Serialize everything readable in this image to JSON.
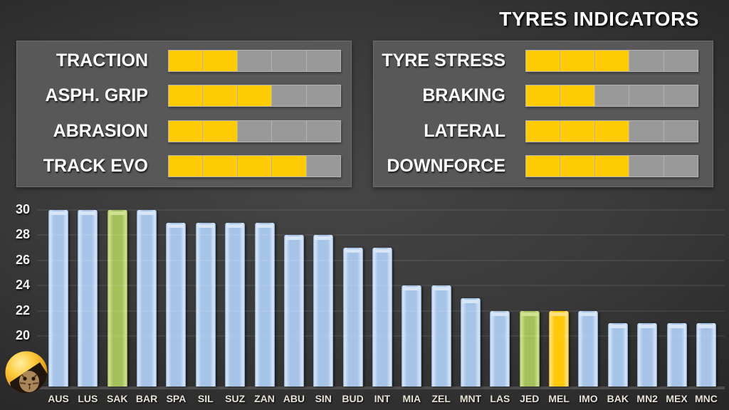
{
  "title": "TYRES INDICATORS",
  "icons": {
    "logo": "cat-helmet-avatar"
  },
  "colors": {
    "indicator_fill": "#FFCB05",
    "indicator_empty": "#999999",
    "panel_bg": "#5A5A5A",
    "bar_blue": "#A6C3E8",
    "bar_green": "#A3C05A",
    "bar_gold": "#FFC808",
    "axis_label_text": "#E7E1D5",
    "title_text": "#FFFFFF"
  },
  "panels": {
    "left": {
      "rows": [
        {
          "label": "TRACTION",
          "value": 2,
          "max": 5
        },
        {
          "label": "ASPH. GRIP",
          "value": 3,
          "max": 5
        },
        {
          "label": "ABRASION",
          "value": 2,
          "max": 5
        },
        {
          "label": "TRACK EVO",
          "value": 4,
          "max": 5
        }
      ]
    },
    "right": {
      "rows": [
        {
          "label": "TYRE STRESS",
          "value": 3,
          "max": 5
        },
        {
          "label": "BRAKING",
          "value": 2,
          "max": 5
        },
        {
          "label": "LATERAL",
          "value": 3,
          "max": 5
        },
        {
          "label": "DOWNFORCE",
          "value": 3,
          "max": 5
        }
      ]
    }
  },
  "chart_data": {
    "type": "bar",
    "categories": [
      "AUS",
      "LUS",
      "SAK",
      "BAR",
      "SPA",
      "SIL",
      "SUZ",
      "ZAN",
      "ABU",
      "SIN",
      "BUD",
      "INT",
      "MIA",
      "ZEL",
      "MNT",
      "LAS",
      "JED",
      "MEL",
      "IMO",
      "BAK",
      "MN2",
      "MEX",
      "MNC"
    ],
    "values": [
      30,
      30,
      30,
      30,
      29,
      29,
      29,
      29,
      28,
      28,
      27,
      27,
      24,
      24,
      23,
      22,
      22,
      22,
      22,
      21,
      21,
      21,
      21
    ],
    "bar_colors": [
      "blue",
      "blue",
      "green",
      "blue",
      "blue",
      "blue",
      "blue",
      "blue",
      "blue",
      "blue",
      "blue",
      "blue",
      "blue",
      "blue",
      "blue",
      "blue",
      "green",
      "gold",
      "blue",
      "blue",
      "blue",
      "blue",
      "blue"
    ],
    "highlighted": {
      "green": [
        "SAK",
        "JED"
      ],
      "gold": [
        "MEL"
      ]
    },
    "yticks": [
      20,
      22,
      24,
      26,
      28,
      30
    ],
    "ylim": [
      16,
      30
    ],
    "grid": true,
    "title": "",
    "xlabel": "",
    "ylabel": ""
  }
}
